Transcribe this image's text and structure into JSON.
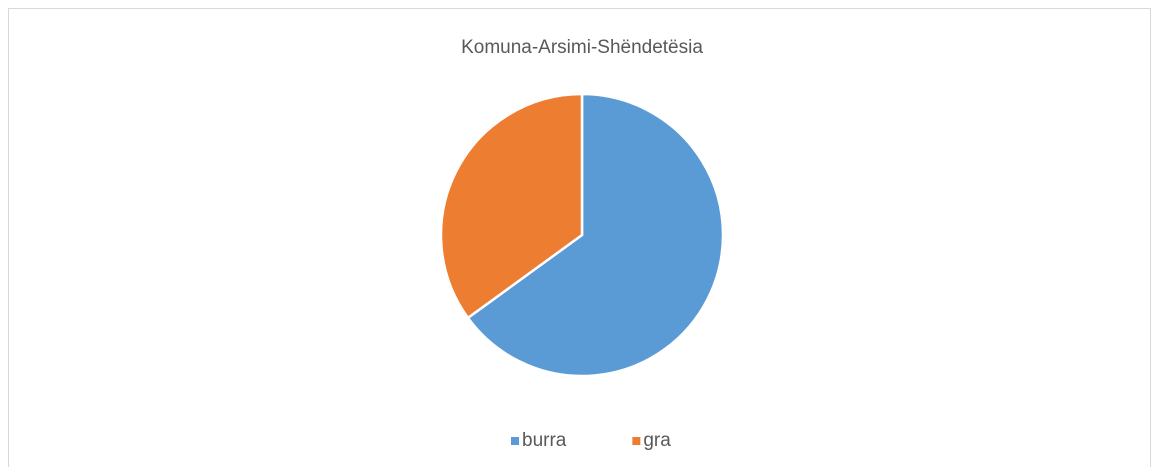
{
  "chart_data": {
    "type": "pie",
    "title": "Komuna-Arsimi-Shëndetësia",
    "categories": [
      "burra",
      "gra"
    ],
    "values": [
      65,
      35
    ],
    "colors": [
      "#5b9bd5",
      "#ed7d31"
    ],
    "legend": "bottom"
  }
}
